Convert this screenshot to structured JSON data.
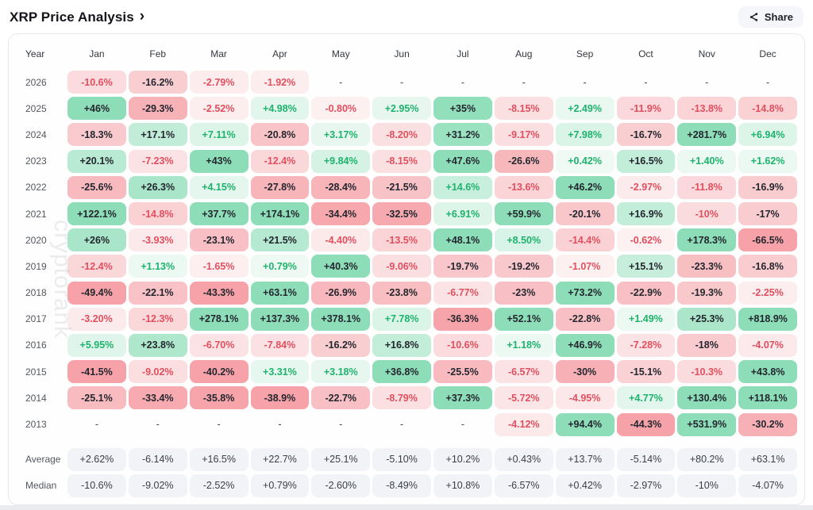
{
  "header": {
    "title": "XRP Price Analysis",
    "chevron": "›",
    "share_label": "Share",
    "share_icon": "share-nodes"
  },
  "watermark": "cryptorank",
  "colors": {
    "green": "#2fc37e",
    "red": "#ef5661",
    "dark_text": "#23262e",
    "green_text": "#1db36c",
    "red_text": "#e14f5e",
    "summary_bg": "#f2f3f7"
  },
  "table": {
    "year_col_header": "Year",
    "months": [
      "Jan",
      "Feb",
      "Mar",
      "Apr",
      "May",
      "Jun",
      "Jul",
      "Aug",
      "Sep",
      "Oct",
      "Nov",
      "Dec"
    ],
    "rows": [
      {
        "year": "2026",
        "values": [
          "-10.6%",
          "-16.2%",
          "-2.79%",
          "-1.92%",
          "-",
          "-",
          "-",
          "-",
          "-",
          "-",
          "-",
          "-"
        ]
      },
      {
        "year": "2025",
        "values": [
          "+46%",
          "-29.3%",
          "-2.52%",
          "+4.98%",
          "-0.80%",
          "+2.95%",
          "+35%",
          "-8.15%",
          "+2.49%",
          "-11.9%",
          "-13.8%",
          "-14.8%"
        ]
      },
      {
        "year": "2024",
        "values": [
          "-18.3%",
          "+17.1%",
          "+7.11%",
          "-20.8%",
          "+3.17%",
          "-8.20%",
          "+31.2%",
          "-9.17%",
          "+7.98%",
          "-16.7%",
          "+281.7%",
          "+6.94%"
        ]
      },
      {
        "year": "2023",
        "values": [
          "+20.1%",
          "-7.23%",
          "+43%",
          "-12.4%",
          "+9.84%",
          "-8.15%",
          "+47.6%",
          "-26.6%",
          "+0.42%",
          "+16.5%",
          "+1.40%",
          "+1.62%"
        ]
      },
      {
        "year": "2022",
        "values": [
          "-25.6%",
          "+26.3%",
          "+4.15%",
          "-27.8%",
          "-28.4%",
          "-21.5%",
          "+14.6%",
          "-13.6%",
          "+46.2%",
          "-2.97%",
          "-11.8%",
          "-16.9%"
        ]
      },
      {
        "year": "2021",
        "values": [
          "+122.1%",
          "-14.8%",
          "+37.7%",
          "+174.1%",
          "-34.4%",
          "-32.5%",
          "+6.91%",
          "+59.9%",
          "-20.1%",
          "+16.9%",
          "-10%",
          "-17%"
        ]
      },
      {
        "year": "2020",
        "values": [
          "+26%",
          "-3.93%",
          "-23.1%",
          "+21.5%",
          "-4.40%",
          "-13.5%",
          "+48.1%",
          "+8.50%",
          "-14.4%",
          "-0.62%",
          "+178.3%",
          "-66.5%"
        ]
      },
      {
        "year": "2019",
        "values": [
          "-12.4%",
          "+1.13%",
          "-1.65%",
          "+0.79%",
          "+40.3%",
          "-9.06%",
          "-19.7%",
          "-19.2%",
          "-1.07%",
          "+15.1%",
          "-23.3%",
          "-16.8%"
        ]
      },
      {
        "year": "2018",
        "values": [
          "-49.4%",
          "-22.1%",
          "-43.3%",
          "+63.1%",
          "-26.9%",
          "-23.8%",
          "-6.77%",
          "-23%",
          "+73.2%",
          "-22.9%",
          "-19.3%",
          "-2.25%"
        ]
      },
      {
        "year": "2017",
        "values": [
          "-3.20%",
          "-12.3%",
          "+278.1%",
          "+137.3%",
          "+378.1%",
          "+7.78%",
          "-36.3%",
          "+52.1%",
          "-22.8%",
          "+1.49%",
          "+25.3%",
          "+818.9%"
        ]
      },
      {
        "year": "2016",
        "values": [
          "+5.95%",
          "+23.8%",
          "-6.70%",
          "-7.84%",
          "-16.2%",
          "+16.8%",
          "-10.6%",
          "+1.18%",
          "+46.9%",
          "-7.28%",
          "-18%",
          "-4.07%"
        ]
      },
      {
        "year": "2015",
        "values": [
          "-41.5%",
          "-9.02%",
          "-40.2%",
          "+3.31%",
          "+3.18%",
          "+36.8%",
          "-25.5%",
          "-6.57%",
          "-30%",
          "-15.1%",
          "-10.3%",
          "+43.8%"
        ]
      },
      {
        "year": "2014",
        "values": [
          "-25.1%",
          "-33.4%",
          "-35.8%",
          "-38.9%",
          "-22.7%",
          "-8.79%",
          "+37.3%",
          "-5.72%",
          "-4.95%",
          "+4.77%",
          "+130.4%",
          "+118.1%"
        ]
      },
      {
        "year": "2013",
        "values": [
          "-",
          "-",
          "-",
          "-",
          "-",
          "-",
          "-",
          "-4.12%",
          "+94.4%",
          "-44.3%",
          "+531.9%",
          "-30.2%"
        ]
      }
    ],
    "summary_rows": [
      {
        "label": "Average",
        "values": [
          "+2.62%",
          "-6.14%",
          "+16.5%",
          "+22.7%",
          "+25.1%",
          "-5.10%",
          "+10.2%",
          "+0.43%",
          "+13.7%",
          "-5.14%",
          "+80.2%",
          "+63.1%"
        ]
      },
      {
        "label": "Median",
        "values": [
          "-10.6%",
          "-9.02%",
          "-2.52%",
          "+0.79%",
          "-2.60%",
          "-8.49%",
          "+10.8%",
          "-6.57%",
          "+0.42%",
          "-2.97%",
          "-10%",
          "-4.07%"
        ]
      }
    ]
  },
  "chart_data": {
    "type": "heatmap",
    "title": "XRP Price Analysis",
    "unit": "%",
    "x_categories": [
      "Jan",
      "Feb",
      "Mar",
      "Apr",
      "May",
      "Jun",
      "Jul",
      "Aug",
      "Sep",
      "Oct",
      "Nov",
      "Dec"
    ],
    "y_categories": [
      "2026",
      "2025",
      "2024",
      "2023",
      "2022",
      "2021",
      "2020",
      "2019",
      "2018",
      "2017",
      "2016",
      "2015",
      "2014",
      "2013"
    ],
    "values": [
      [
        -10.6,
        -16.2,
        -2.79,
        -1.92,
        null,
        null,
        null,
        null,
        null,
        null,
        null,
        null
      ],
      [
        46,
        -29.3,
        -2.52,
        4.98,
        -0.8,
        2.95,
        35,
        -8.15,
        2.49,
        -11.9,
        -13.8,
        -14.8
      ],
      [
        -18.3,
        17.1,
        7.11,
        -20.8,
        3.17,
        -8.2,
        31.2,
        -9.17,
        7.98,
        -16.7,
        281.7,
        6.94
      ],
      [
        20.1,
        -7.23,
        43,
        -12.4,
        9.84,
        -8.15,
        47.6,
        -26.6,
        0.42,
        16.5,
        1.4,
        1.62
      ],
      [
        -25.6,
        26.3,
        4.15,
        -27.8,
        -28.4,
        -21.5,
        14.6,
        -13.6,
        46.2,
        -2.97,
        -11.8,
        -16.9
      ],
      [
        122.1,
        -14.8,
        37.7,
        174.1,
        -34.4,
        -32.5,
        6.91,
        59.9,
        -20.1,
        16.9,
        -10,
        -17
      ],
      [
        26,
        -3.93,
        -23.1,
        21.5,
        -4.4,
        -13.5,
        48.1,
        8.5,
        -14.4,
        -0.62,
        178.3,
        -66.5
      ],
      [
        -12.4,
        1.13,
        -1.65,
        0.79,
        40.3,
        -9.06,
        -19.7,
        -19.2,
        -1.07,
        15.1,
        -23.3,
        -16.8
      ],
      [
        -49.4,
        -22.1,
        -43.3,
        63.1,
        -26.9,
        -23.8,
        -6.77,
        -23,
        73.2,
        -22.9,
        -19.3,
        -2.25
      ],
      [
        -3.2,
        -12.3,
        278.1,
        137.3,
        378.1,
        7.78,
        -36.3,
        52.1,
        -22.8,
        1.49,
        25.3,
        818.9
      ],
      [
        5.95,
        23.8,
        -6.7,
        -7.84,
        -16.2,
        16.8,
        -10.6,
        1.18,
        46.9,
        -7.28,
        -18,
        -4.07
      ],
      [
        -41.5,
        -9.02,
        -40.2,
        3.31,
        3.18,
        36.8,
        -25.5,
        -6.57,
        -30,
        -15.1,
        -10.3,
        43.8
      ],
      [
        -25.1,
        -33.4,
        -35.8,
        -38.9,
        -22.7,
        -8.79,
        37.3,
        -5.72,
        -4.95,
        4.77,
        130.4,
        118.1
      ],
      [
        null,
        null,
        null,
        null,
        null,
        null,
        null,
        -4.12,
        94.4,
        -44.3,
        531.9,
        -30.2
      ]
    ],
    "summary": {
      "average": [
        2.62,
        -6.14,
        16.5,
        22.7,
        25.1,
        -5.1,
        10.2,
        0.43,
        13.7,
        -5.14,
        80.2,
        63.1
      ],
      "median": [
        -10.6,
        -9.02,
        -2.52,
        0.79,
        -2.6,
        -8.49,
        10.8,
        -6.57,
        0.42,
        -2.97,
        -10,
        -4.07
      ]
    },
    "legend_position": "none",
    "grid": false,
    "color_scale": "green positive / red negative, intensity by magnitude"
  }
}
